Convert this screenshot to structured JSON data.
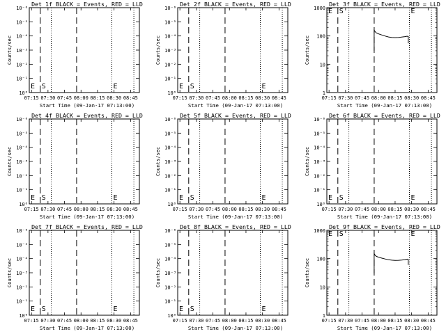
{
  "chart_data": [
    {
      "type": "line",
      "title": "Det 1f BLACK = Events, RED = LLD",
      "xlabel": "Start Time (09-Jan-17 07:13:00)",
      "ylabel": "Counts/sec",
      "y_scale": "log-exponent",
      "yticks": [
        "10⁰",
        "10⁻¹",
        "10⁻²",
        "10⁻³",
        "10⁻⁴",
        "10⁻⁵",
        "10⁻⁶"
      ],
      "xticks": [
        "07:15",
        "07:30",
        "07:45",
        "08:00",
        "08:15",
        "08:30",
        "08:45"
      ],
      "xlim": [
        "07:13",
        "08:53"
      ],
      "markers": [
        {
          "label": "E",
          "time": "07:13",
          "style": "dotted"
        },
        {
          "label": "S",
          "time": "07:23",
          "style": "dashed"
        },
        {
          "time": "07:33",
          "style": "dotted"
        },
        {
          "time": "07:56",
          "style": "dashed"
        },
        {
          "label": "E",
          "time": "08:28",
          "style": "dotted"
        },
        {
          "time": "08:48",
          "style": "dotted"
        }
      ],
      "series": []
    },
    {
      "type": "line",
      "title": "Det 2f BLACK = Events, RED = LLD",
      "xlabel": "Start Time (09-Jan-17 07:13:00)",
      "ylabel": "Counts/sec",
      "y_scale": "log-exponent",
      "yticks": [
        "10⁰",
        "10⁻¹",
        "10⁻²",
        "10⁻³",
        "10⁻⁴",
        "10⁻⁵",
        "10⁻⁶"
      ],
      "xticks": [
        "07:15",
        "07:30",
        "07:45",
        "08:00",
        "08:15",
        "08:30",
        "08:45"
      ],
      "xlim": [
        "07:13",
        "08:53"
      ],
      "markers": [
        {
          "label": "E",
          "time": "07:13",
          "style": "dotted"
        },
        {
          "label": "S",
          "time": "07:23",
          "style": "dashed"
        },
        {
          "time": "07:33",
          "style": "dotted"
        },
        {
          "time": "07:56",
          "style": "dashed"
        },
        {
          "label": "E",
          "time": "08:28",
          "style": "dotted"
        },
        {
          "time": "08:48",
          "style": "dotted"
        }
      ],
      "series": []
    },
    {
      "type": "line",
      "title": "Det 3f BLACK = Events, RED = LLD",
      "xlabel": "Start Time (09-Jan-17 07:13:00)",
      "ylabel": "Counts/sec",
      "y_scale": "log",
      "yticks": [
        "1",
        "10",
        "100",
        "1000"
      ],
      "ylim": [
        1,
        1000
      ],
      "xticks": [
        "07:15",
        "07:30",
        "07:45",
        "08:00",
        "08:15",
        "08:30",
        "08:45"
      ],
      "xlim": [
        "07:13",
        "08:53"
      ],
      "markers": [
        {
          "label": "E",
          "time": "07:13",
          "style": "dotted"
        },
        {
          "label": "S",
          "time": "07:23",
          "style": "dashed"
        },
        {
          "time": "07:33",
          "style": "dotted"
        },
        {
          "time": "07:56",
          "style": "dashed"
        },
        {
          "label": "E",
          "time": "08:28",
          "style": "dotted"
        },
        {
          "time": "08:48",
          "style": "dotted"
        }
      ],
      "series": [
        {
          "color": "#000000",
          "x": [
            "07:56",
            "07:56",
            "07:57",
            "07:58",
            "08:00",
            "08:03",
            "08:06",
            "08:09",
            "08:12",
            "08:15",
            "08:18",
            "08:21",
            "08:24",
            "08:26",
            "08:27",
            "08:27"
          ],
          "y": [
            30,
            160,
            140,
            128,
            118,
            108,
            99,
            92,
            88,
            87,
            88,
            91,
            95,
            98,
            95,
            55
          ]
        }
      ]
    },
    {
      "type": "line",
      "title": "Det 4f BLACK = Events, RED = LLD",
      "xlabel": "Start Time (09-Jan-17 07:13:00)",
      "ylabel": "Counts/sec",
      "y_scale": "log-exponent",
      "yticks": [
        "10⁰",
        "10⁻¹",
        "10⁻²",
        "10⁻³",
        "10⁻⁴",
        "10⁻⁵",
        "10⁻⁶"
      ],
      "xticks": [
        "07:15",
        "07:30",
        "07:45",
        "08:00",
        "08:15",
        "08:30",
        "08:45"
      ],
      "xlim": [
        "07:13",
        "08:53"
      ],
      "markers": [
        {
          "label": "E",
          "time": "07:13",
          "style": "dotted"
        },
        {
          "label": "S",
          "time": "07:23",
          "style": "dashed"
        },
        {
          "time": "07:33",
          "style": "dotted"
        },
        {
          "time": "07:56",
          "style": "dashed"
        },
        {
          "label": "E",
          "time": "08:28",
          "style": "dotted"
        },
        {
          "time": "08:48",
          "style": "dotted"
        }
      ],
      "series": []
    },
    {
      "type": "line",
      "title": "Det 5f BLACK = Events, RED = LLD",
      "xlabel": "Start Time (09-Jan-17 07:13:00)",
      "ylabel": "Counts/sec",
      "y_scale": "log-exponent",
      "yticks": [
        "10⁰",
        "10⁻¹",
        "10⁻²",
        "10⁻³",
        "10⁻⁴",
        "10⁻⁵",
        "10⁻⁶"
      ],
      "xticks": [
        "07:15",
        "07:30",
        "07:45",
        "08:00",
        "08:15",
        "08:30",
        "08:45"
      ],
      "xlim": [
        "07:13",
        "08:53"
      ],
      "markers": [
        {
          "label": "E",
          "time": "07:13",
          "style": "dotted"
        },
        {
          "label": "S",
          "time": "07:23",
          "style": "dashed"
        },
        {
          "time": "07:33",
          "style": "dotted"
        },
        {
          "time": "07:56",
          "style": "dashed"
        },
        {
          "label": "E",
          "time": "08:28",
          "style": "dotted"
        },
        {
          "time": "08:48",
          "style": "dotted"
        }
      ],
      "series": []
    },
    {
      "type": "line",
      "title": "Det 6f BLACK = Events, RED = LLD",
      "xlabel": "Start Time (09-Jan-17 07:13:00)",
      "ylabel": "Counts/sec",
      "y_scale": "log-exponent",
      "yticks": [
        "10⁰",
        "10⁻¹",
        "10⁻²",
        "10⁻³",
        "10⁻⁴",
        "10⁻⁵",
        "10⁻⁶"
      ],
      "xticks": [
        "07:15",
        "07:30",
        "07:45",
        "08:00",
        "08:15",
        "08:30",
        "08:45"
      ],
      "xlim": [
        "07:13",
        "08:53"
      ],
      "markers": [
        {
          "label": "E",
          "time": "07:13",
          "style": "dotted"
        },
        {
          "label": "S",
          "time": "07:23",
          "style": "dashed"
        },
        {
          "time": "07:33",
          "style": "dotted"
        },
        {
          "time": "07:56",
          "style": "dashed"
        },
        {
          "label": "E",
          "time": "08:28",
          "style": "dotted"
        },
        {
          "time": "08:48",
          "style": "dotted"
        }
      ],
      "series": []
    },
    {
      "type": "line",
      "title": "Det 7f BLACK = Events, RED = LLD",
      "xlabel": "Start Time (09-Jan-17 07:13:00)",
      "ylabel": "Counts/sec",
      "y_scale": "log-exponent",
      "yticks": [
        "10⁰",
        "10⁻¹",
        "10⁻²",
        "10⁻³",
        "10⁻⁴",
        "10⁻⁵",
        "10⁻⁶"
      ],
      "xticks": [
        "07:15",
        "07:30",
        "07:45",
        "08:00",
        "08:15",
        "08:30",
        "08:45"
      ],
      "xlim": [
        "07:13",
        "08:53"
      ],
      "markers": [
        {
          "label": "E",
          "time": "07:13",
          "style": "dotted"
        },
        {
          "label": "S",
          "time": "07:23",
          "style": "dashed"
        },
        {
          "time": "07:33",
          "style": "dotted"
        },
        {
          "time": "07:56",
          "style": "dashed"
        },
        {
          "label": "E",
          "time": "08:28",
          "style": "dotted"
        },
        {
          "time": "08:48",
          "style": "dotted"
        }
      ],
      "series": []
    },
    {
      "type": "line",
      "title": "Det 8f BLACK = Events, RED = LLD",
      "xlabel": "Start Time (09-Jan-17 07:13:00)",
      "ylabel": "Counts/sec",
      "y_scale": "log-exponent",
      "yticks": [
        "10⁰",
        "10⁻¹",
        "10⁻²",
        "10⁻³",
        "10⁻⁴",
        "10⁻⁵",
        "10⁻⁶"
      ],
      "xticks": [
        "07:15",
        "07:30",
        "07:45",
        "08:00",
        "08:15",
        "08:30",
        "08:45"
      ],
      "xlim": [
        "07:13",
        "08:53"
      ],
      "markers": [
        {
          "label": "E",
          "time": "07:13",
          "style": "dotted"
        },
        {
          "label": "S",
          "time": "07:23",
          "style": "dashed"
        },
        {
          "time": "07:33",
          "style": "dotted"
        },
        {
          "time": "07:56",
          "style": "dashed"
        },
        {
          "label": "E",
          "time": "08:28",
          "style": "dotted"
        },
        {
          "time": "08:48",
          "style": "dotted"
        }
      ],
      "series": []
    },
    {
      "type": "line",
      "title": "Det 9f BLACK = Events, RED = LLD",
      "xlabel": "Start Time (09-Jan-17 07:13:00)",
      "ylabel": "Counts/sec",
      "y_scale": "log",
      "yticks": [
        "1",
        "10",
        "100",
        "1000"
      ],
      "ylim": [
        1,
        1000
      ],
      "xticks": [
        "07:15",
        "07:30",
        "07:45",
        "08:00",
        "08:15",
        "08:30",
        "08:45"
      ],
      "xlim": [
        "07:13",
        "08:53"
      ],
      "markers": [
        {
          "label": "E",
          "time": "07:13",
          "style": "dotted"
        },
        {
          "label": "S",
          "time": "07:23",
          "style": "dashed"
        },
        {
          "time": "07:33",
          "style": "dotted"
        },
        {
          "time": "07:56",
          "style": "dashed"
        },
        {
          "label": "E",
          "time": "08:28",
          "style": "dotted"
        },
        {
          "time": "08:48",
          "style": "dotted"
        }
      ],
      "series": [
        {
          "color": "#000000",
          "x": [
            "07:56",
            "07:56",
            "07:57",
            "07:58",
            "08:00",
            "08:03",
            "08:06",
            "08:09",
            "08:12",
            "08:15",
            "08:18",
            "08:21",
            "08:24",
            "08:26",
            "08:27",
            "08:27"
          ],
          "y": [
            30,
            150,
            130,
            120,
            112,
            104,
            97,
            91,
            88,
            86,
            87,
            89,
            92,
            96,
            93,
            60
          ]
        }
      ]
    }
  ]
}
